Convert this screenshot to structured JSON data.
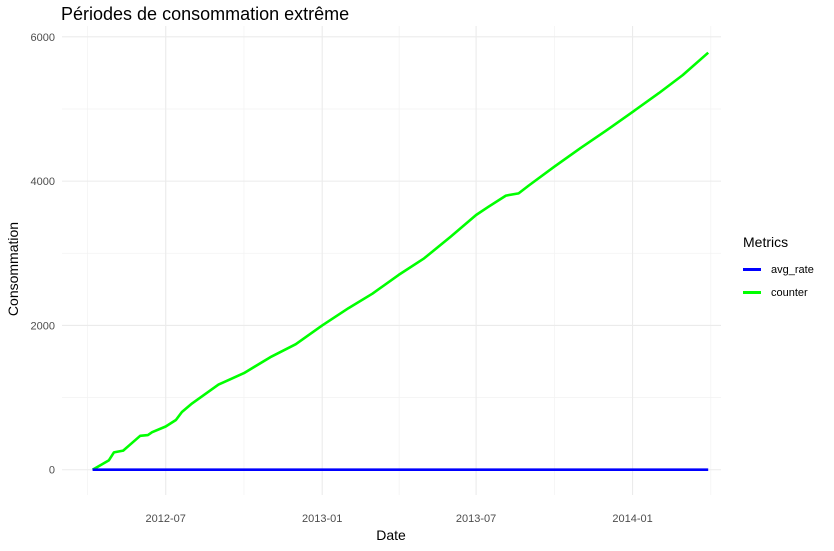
{
  "chart_data": {
    "type": "line",
    "title": "Périodes de consommation extrême",
    "xlabel": "Date",
    "ylabel": "Consommation",
    "x_range": [
      "2012-03-01",
      "2014-04-15"
    ],
    "ylim": [
      -350,
      6150
    ],
    "x_ticks": [
      "2012-07-01",
      "2013-01-01",
      "2013-07-01",
      "2014-01-01"
    ],
    "x_tick_labels": [
      "2012-07",
      "2013-01",
      "2013-07",
      "2014-01"
    ],
    "y_ticks": [
      0,
      2000,
      4000,
      6000
    ],
    "y_tick_labels": [
      "0",
      "2000",
      "4000",
      "6000"
    ],
    "grid": true,
    "legend": {
      "title": "Metrics",
      "position": "right"
    },
    "series": [
      {
        "name": "avg_rate",
        "color": "#0000ff",
        "points": [
          [
            "2012-04-06",
            0
          ],
          [
            "2014-03-31",
            0
          ]
        ]
      },
      {
        "name": "counter",
        "color": "#00ff00",
        "points": [
          [
            "2012-04-06",
            0
          ],
          [
            "2012-04-25",
            130
          ],
          [
            "2012-05-01",
            240
          ],
          [
            "2012-05-12",
            265
          ],
          [
            "2012-06-01",
            470
          ],
          [
            "2012-06-10",
            480
          ],
          [
            "2012-06-15",
            520
          ],
          [
            "2012-07-01",
            600
          ],
          [
            "2012-07-13",
            690
          ],
          [
            "2012-07-20",
            800
          ],
          [
            "2012-08-01",
            920
          ],
          [
            "2012-09-01",
            1180
          ],
          [
            "2012-10-01",
            1340
          ],
          [
            "2012-11-01",
            1560
          ],
          [
            "2012-12-01",
            1740
          ],
          [
            "2013-01-01",
            2000
          ],
          [
            "2013-02-01",
            2240
          ],
          [
            "2013-03-01",
            2440
          ],
          [
            "2013-04-01",
            2700
          ],
          [
            "2013-05-01",
            2930
          ],
          [
            "2013-06-01",
            3230
          ],
          [
            "2013-07-01",
            3530
          ],
          [
            "2013-07-15",
            3640
          ],
          [
            "2013-08-05",
            3800
          ],
          [
            "2013-08-20",
            3830
          ],
          [
            "2013-09-01",
            3940
          ],
          [
            "2013-10-01",
            4200
          ],
          [
            "2013-11-01",
            4460
          ],
          [
            "2013-12-01",
            4700
          ],
          [
            "2014-01-01",
            4960
          ],
          [
            "2014-02-01",
            5220
          ],
          [
            "2014-03-01",
            5470
          ],
          [
            "2014-03-31",
            5780
          ]
        ]
      }
    ]
  }
}
